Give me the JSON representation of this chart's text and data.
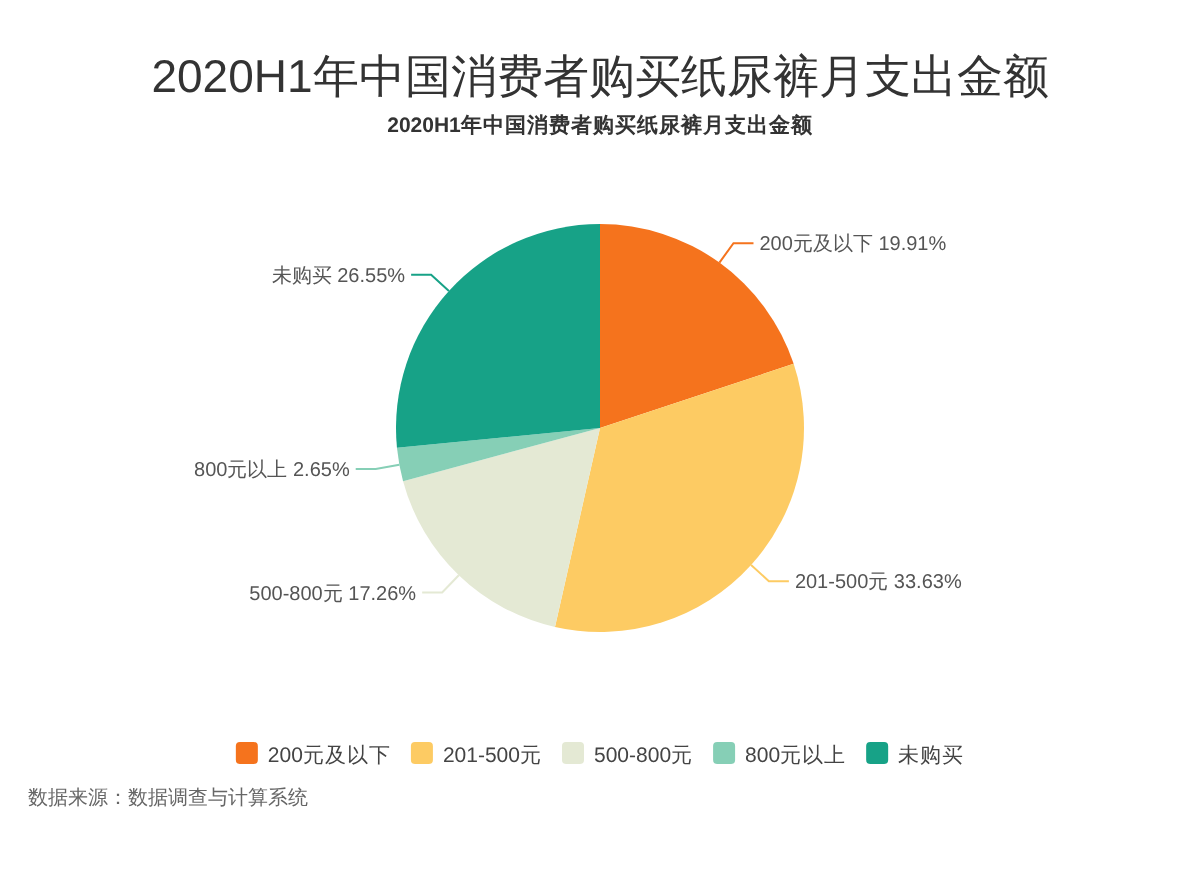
{
  "chart_data": {
    "type": "pie",
    "title": "2020H1年中国消费者购买纸尿裤月支出金额",
    "subtitle": "2020H1年中国消费者购买纸尿裤月支出金额",
    "categories": [
      "200元及以下",
      "201-500元",
      "500-800元",
      "800元以上",
      "未购买"
    ],
    "values": [
      19.91,
      33.63,
      17.26,
      2.65,
      26.55
    ],
    "colors": [
      "#f5731d",
      "#fdcb63",
      "#e4e9d4",
      "#86cfb6",
      "#17a287"
    ],
    "value_labels": [
      "200元及以下 19.91%",
      "201-500元 33.63%",
      "500-800元 17.26%",
      "800元以上 2.65%",
      "未购买 26.55%"
    ],
    "legend": "bottom",
    "annotations": [
      "数据来源：数据调查与计算系统"
    ]
  }
}
